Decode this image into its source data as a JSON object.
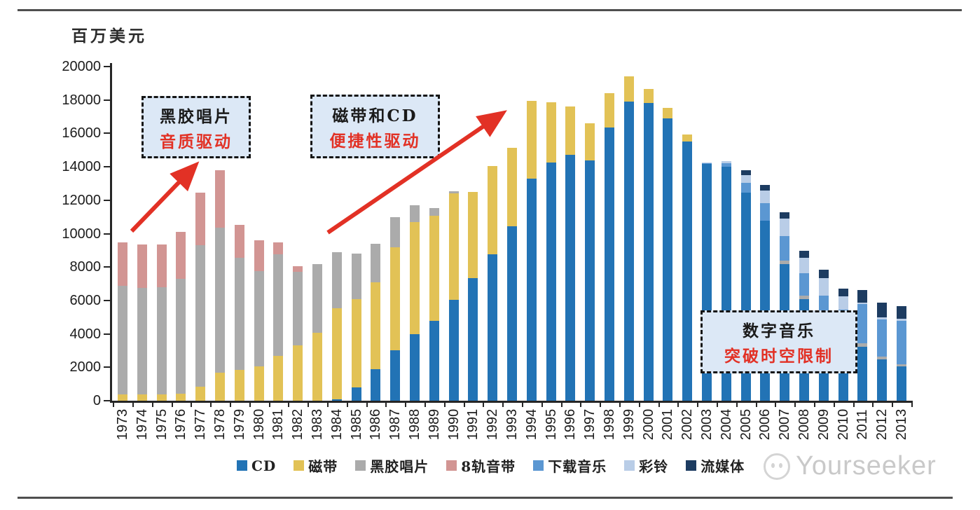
{
  "page": {
    "unit_label": "百万美元",
    "watermark_text": "Yourseeker"
  },
  "colors": {
    "cd": "#2273b5",
    "cassette": "#e2c256",
    "vinyl": "#ababab",
    "eight_track": "#d29593",
    "downloads": "#5b97d2",
    "ringtones": "#b9cde7",
    "streaming": "#1d3c61",
    "accent_red": "#e23125",
    "annotation_fill": "#dce8f6",
    "axis": "#262626",
    "watermark_gray": "#c9c9c9"
  },
  "annotations": [
    {
      "line1": "黑胶唱片",
      "line2": "音质驱动"
    },
    {
      "line1": "磁带和CD",
      "line2": "便捷性驱动"
    },
    {
      "line1": "数字音乐",
      "line2": "突破时空限制"
    }
  ],
  "chart_data": {
    "type": "bar",
    "stacked": true,
    "ylabel": "百万美元",
    "ylim": [
      0,
      20000
    ],
    "ytick_step": 2000,
    "grid": false,
    "legend_position": "bottom",
    "categories": [
      1973,
      1974,
      1975,
      1976,
      1977,
      1978,
      1979,
      1980,
      1981,
      1982,
      1983,
      1984,
      1985,
      1986,
      1987,
      1988,
      1989,
      1990,
      1991,
      1992,
      1993,
      1994,
      1995,
      1996,
      1997,
      1998,
      1999,
      2000,
      2001,
      2002,
      2003,
      2004,
      2005,
      2006,
      2007,
      2008,
      2009,
      2010,
      2011,
      2012,
      2013
    ],
    "series": [
      {
        "name": "CD",
        "color_key": "cd",
        "values": [
          0,
          0,
          0,
          0,
          0,
          0,
          0,
          0,
          0,
          0,
          0,
          100,
          800,
          1890,
          3020,
          3985,
          4780,
          6040,
          7340,
          8765,
          10440,
          13290,
          14255,
          14715,
          14380,
          16350,
          17905,
          17820,
          16900,
          15515,
          14155,
          14005,
          12455,
          10775,
          8180,
          6080,
          4780,
          4070,
          3230,
          2470,
          2050
        ]
      },
      {
        "name": "磁带",
        "color_key": "cassette",
        "values": [
          380,
          380,
          380,
          420,
          840,
          1680,
          1845,
          2055,
          2685,
          3315,
          4065,
          5420,
          5280,
          5200,
          6160,
          6710,
          6290,
          6350,
          5160,
          5280,
          4695,
          4660,
          3605,
          2895,
          2225,
          2055,
          1510,
          840,
          630,
          420,
          0,
          0,
          0,
          0,
          0,
          0,
          0,
          0,
          0,
          0,
          0
        ]
      },
      {
        "name": "黑胶唱片",
        "color_key": "vinyl",
        "values": [
          6500,
          6370,
          6410,
          6880,
          8470,
          8680,
          6710,
          5700,
          6065,
          4400,
          4110,
          3370,
          2725,
          2305,
          1805,
          1005,
          460,
          150,
          0,
          0,
          0,
          0,
          0,
          0,
          0,
          0,
          0,
          0,
          0,
          0,
          0,
          0,
          0,
          0,
          210,
          210,
          210,
          125,
          210,
          160,
          130
        ]
      },
      {
        "name": "8轨音带",
        "color_key": "eight_track",
        "values": [
          2600,
          2600,
          2560,
          2810,
          3140,
          3440,
          1970,
          1845,
          725,
          335,
          0,
          0,
          0,
          0,
          0,
          0,
          0,
          0,
          0,
          0,
          0,
          0,
          0,
          0,
          0,
          0,
          0,
          0,
          0,
          0,
          0,
          0,
          0,
          0,
          0,
          0,
          0,
          0,
          0,
          0,
          0
        ]
      },
      {
        "name": "下载音乐",
        "color_key": "downloads",
        "values": [
          0,
          0,
          0,
          0,
          0,
          0,
          0,
          0,
          0,
          0,
          0,
          0,
          0,
          0,
          0,
          0,
          0,
          0,
          0,
          0,
          0,
          0,
          0,
          0,
          0,
          0,
          0,
          0,
          0,
          0,
          50,
          200,
          600,
          1050,
          1470,
          1340,
          1300,
          1260,
          2350,
          2250,
          2620
        ]
      },
      {
        "name": "彩铃",
        "color_key": "ringtones",
        "values": [
          0,
          0,
          0,
          0,
          0,
          0,
          0,
          0,
          0,
          0,
          0,
          0,
          0,
          0,
          0,
          0,
          0,
          0,
          0,
          0,
          0,
          0,
          0,
          0,
          0,
          0,
          0,
          0,
          0,
          0,
          50,
          135,
          450,
          765,
          1050,
          920,
          1050,
          800,
          100,
          100,
          100
        ]
      },
      {
        "name": "流媒体",
        "color_key": "streaming",
        "values": [
          0,
          0,
          0,
          0,
          0,
          0,
          0,
          0,
          0,
          0,
          0,
          0,
          0,
          0,
          0,
          0,
          0,
          0,
          0,
          0,
          0,
          0,
          0,
          0,
          0,
          0,
          0,
          0,
          0,
          0,
          0,
          0,
          305,
          325,
          380,
          420,
          500,
          460,
          750,
          880,
          760
        ]
      }
    ]
  }
}
